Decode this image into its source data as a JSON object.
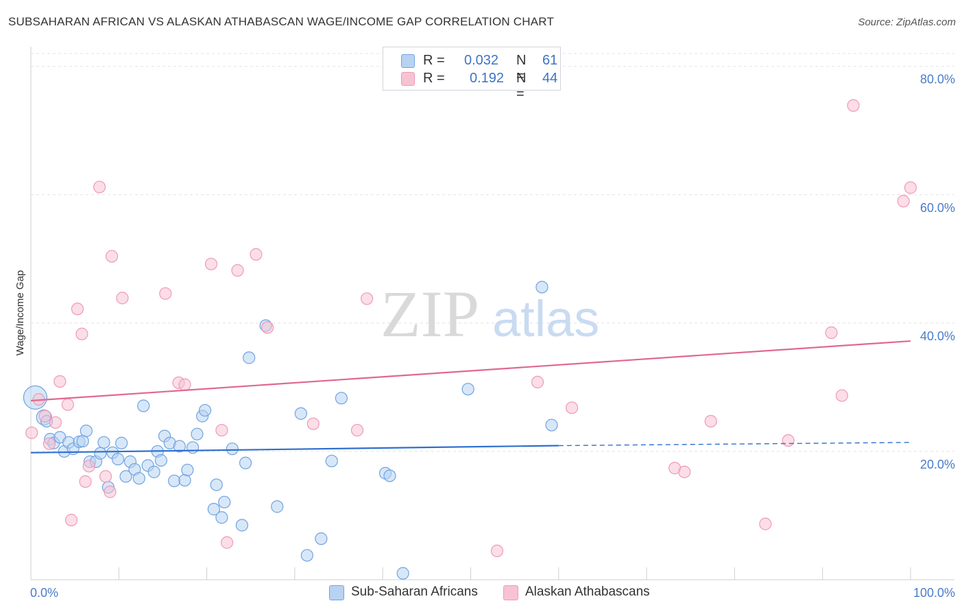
{
  "title": "SUBSAHARAN AFRICAN VS ALASKAN ATHABASCAN WAGE/INCOME GAP CORRELATION CHART",
  "source": "Source: ZipAtlas.com",
  "watermark": {
    "zip": "ZIP",
    "atlas": "atlas"
  },
  "legend_top": [
    {
      "r_label": "R =",
      "r_value": "0.032",
      "n_label": "N =",
      "n_value": "61",
      "color": "#b8d3f2"
    },
    {
      "r_label": "R =",
      "r_value": "0.192",
      "n_label": "N =",
      "n_value": "44",
      "color": "#f7c3d3"
    }
  ],
  "chart_data": {
    "type": "scatter",
    "title": "SUBSAHARAN AFRICAN VS ALASKAN ATHABASCAN WAGE/INCOME GAP CORRELATION CHART",
    "xlabel": "",
    "ylabel": "Wage/Income Gap",
    "xlim": [
      0,
      100
    ],
    "ylim": [
      0,
      82
    ],
    "x_tick_labels": {
      "min": "0.0%",
      "max": "100.0%"
    },
    "y_ticks": [
      {
        "value": 20,
        "label": "20.0%"
      },
      {
        "value": 40,
        "label": "40.0%"
      },
      {
        "value": 60,
        "label": "60.0%"
      },
      {
        "value": 80,
        "label": "80.0%"
      }
    ],
    "grid": true,
    "legend": "bottom",
    "series": [
      {
        "name": "Sub-Saharan Africans",
        "color": "#6fa3e0",
        "fill": "#b8d3f2",
        "trend": {
          "x0": 0,
          "y0": 19.8,
          "x1": 60,
          "y1": 20.9,
          "x_dash_end": 100,
          "y_dash_end": 21.4,
          "color": "#2f6fce"
        },
        "points": [
          {
            "x": 0.5,
            "y": 28.4,
            "big": 2
          },
          {
            "x": 1.5,
            "y": 25.3,
            "big": 1
          },
          {
            "x": 1.8,
            "y": 24.7
          },
          {
            "x": 2.2,
            "y": 21.9
          },
          {
            "x": 2.6,
            "y": 21.3
          },
          {
            "x": 3.3,
            "y": 22.2
          },
          {
            "x": 3.8,
            "y": 20.0
          },
          {
            "x": 4.3,
            "y": 21.4
          },
          {
            "x": 4.8,
            "y": 20.4
          },
          {
            "x": 5.5,
            "y": 21.5
          },
          {
            "x": 5.9,
            "y": 21.6
          },
          {
            "x": 6.3,
            "y": 23.2
          },
          {
            "x": 6.7,
            "y": 18.4
          },
          {
            "x": 7.4,
            "y": 18.4
          },
          {
            "x": 7.9,
            "y": 19.7
          },
          {
            "x": 8.3,
            "y": 21.4
          },
          {
            "x": 8.8,
            "y": 14.4
          },
          {
            "x": 9.3,
            "y": 19.8
          },
          {
            "x": 9.9,
            "y": 18.8
          },
          {
            "x": 10.3,
            "y": 21.3
          },
          {
            "x": 10.8,
            "y": 16.1
          },
          {
            "x": 11.3,
            "y": 18.4
          },
          {
            "x": 11.8,
            "y": 17.2
          },
          {
            "x": 12.3,
            "y": 15.8
          },
          {
            "x": 12.8,
            "y": 27.1
          },
          {
            "x": 13.3,
            "y": 17.8
          },
          {
            "x": 14.0,
            "y": 16.8
          },
          {
            "x": 14.4,
            "y": 20.0
          },
          {
            "x": 14.8,
            "y": 18.6
          },
          {
            "x": 15.2,
            "y": 22.4
          },
          {
            "x": 15.8,
            "y": 21.3
          },
          {
            "x": 16.3,
            "y": 15.4
          },
          {
            "x": 16.9,
            "y": 20.8
          },
          {
            "x": 17.5,
            "y": 15.5
          },
          {
            "x": 17.8,
            "y": 17.1
          },
          {
            "x": 18.4,
            "y": 20.6
          },
          {
            "x": 18.9,
            "y": 22.7
          },
          {
            "x": 19.5,
            "y": 25.5
          },
          {
            "x": 19.8,
            "y": 26.4
          },
          {
            "x": 20.8,
            "y": 11.0
          },
          {
            "x": 21.1,
            "y": 14.8
          },
          {
            "x": 21.7,
            "y": 9.7
          },
          {
            "x": 22.0,
            "y": 12.1
          },
          {
            "x": 22.9,
            "y": 20.4
          },
          {
            "x": 24.0,
            "y": 8.5
          },
          {
            "x": 24.4,
            "y": 18.2
          },
          {
            "x": 24.8,
            "y": 34.6
          },
          {
            "x": 26.7,
            "y": 39.6
          },
          {
            "x": 28.0,
            "y": 11.4
          },
          {
            "x": 30.7,
            "y": 25.9
          },
          {
            "x": 31.4,
            "y": 3.8
          },
          {
            "x": 33.0,
            "y": 6.4
          },
          {
            "x": 34.2,
            "y": 18.5
          },
          {
            "x": 35.3,
            "y": 28.3
          },
          {
            "x": 40.3,
            "y": 16.6
          },
          {
            "x": 40.8,
            "y": 16.2
          },
          {
            "x": 42.3,
            "y": 1.0
          },
          {
            "x": 49.7,
            "y": 29.7
          },
          {
            "x": 58.1,
            "y": 45.6
          },
          {
            "x": 59.2,
            "y": 24.1
          }
        ]
      },
      {
        "name": "Alaskan Athabascans",
        "color": "#ee9ab5",
        "fill": "#f7c3d3",
        "trend": {
          "x0": 0,
          "y0": 27.9,
          "x1": 100,
          "y1": 37.2,
          "color": "#e0688f"
        },
        "points": [
          {
            "x": 0.1,
            "y": 22.9
          },
          {
            "x": 0.9,
            "y": 28.1
          },
          {
            "x": 1.6,
            "y": 25.5
          },
          {
            "x": 2.1,
            "y": 21.2
          },
          {
            "x": 2.8,
            "y": 24.5
          },
          {
            "x": 3.3,
            "y": 30.9
          },
          {
            "x": 4.2,
            "y": 27.3
          },
          {
            "x": 4.6,
            "y": 9.3
          },
          {
            "x": 5.3,
            "y": 42.2
          },
          {
            "x": 5.8,
            "y": 38.3
          },
          {
            "x": 6.2,
            "y": 15.3
          },
          {
            "x": 6.6,
            "y": 17.7
          },
          {
            "x": 7.8,
            "y": 61.2
          },
          {
            "x": 8.5,
            "y": 16.1
          },
          {
            "x": 9.0,
            "y": 13.7
          },
          {
            "x": 9.2,
            "y": 50.4
          },
          {
            "x": 10.4,
            "y": 43.9
          },
          {
            "x": 15.3,
            "y": 44.6
          },
          {
            "x": 16.8,
            "y": 30.7
          },
          {
            "x": 17.5,
            "y": 30.4
          },
          {
            "x": 20.5,
            "y": 49.2
          },
          {
            "x": 21.7,
            "y": 23.3
          },
          {
            "x": 22.3,
            "y": 5.8
          },
          {
            "x": 23.5,
            "y": 48.2
          },
          {
            "x": 25.6,
            "y": 50.7
          },
          {
            "x": 26.9,
            "y": 39.3
          },
          {
            "x": 32.1,
            "y": 24.3
          },
          {
            "x": 37.1,
            "y": 23.3
          },
          {
            "x": 38.2,
            "y": 43.8
          },
          {
            "x": 53.0,
            "y": 4.5
          },
          {
            "x": 57.6,
            "y": 30.8
          },
          {
            "x": 61.5,
            "y": 26.8
          },
          {
            "x": 73.2,
            "y": 17.4
          },
          {
            "x": 74.3,
            "y": 16.8
          },
          {
            "x": 77.3,
            "y": 24.7
          },
          {
            "x": 83.5,
            "y": 8.7
          },
          {
            "x": 86.1,
            "y": 21.7
          },
          {
            "x": 91.0,
            "y": 38.5
          },
          {
            "x": 92.2,
            "y": 28.7
          },
          {
            "x": 93.5,
            "y": 73.9
          },
          {
            "x": 99.2,
            "y": 59.0
          },
          {
            "x": 100.0,
            "y": 61.1
          }
        ]
      }
    ]
  }
}
